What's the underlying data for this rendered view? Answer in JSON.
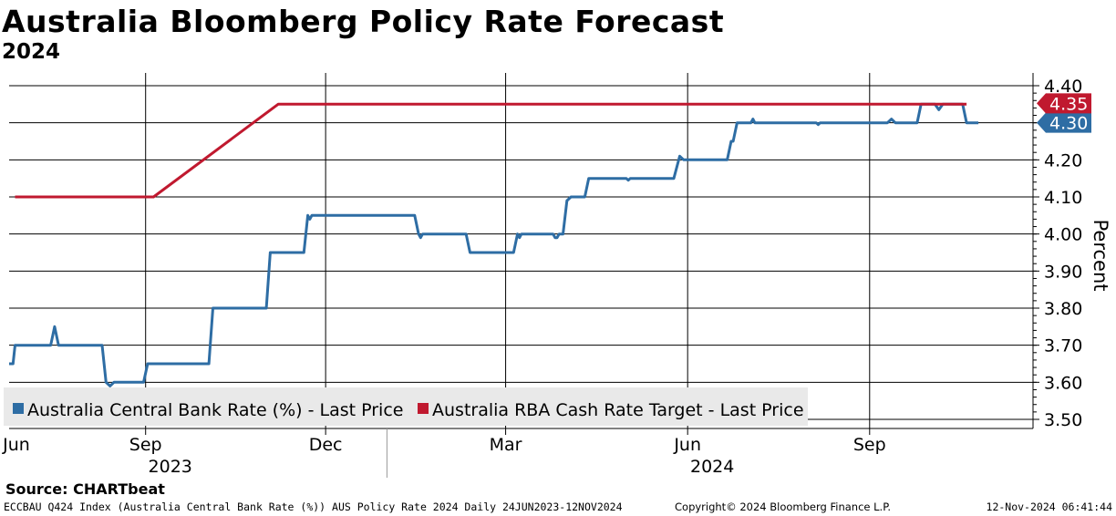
{
  "header": {
    "title": "Australia Bloomberg Policy Rate Forecast",
    "subtitle": "2024"
  },
  "source": "Source: CHARTbeat",
  "footer": {
    "left": "ECCBAU Q424 Index (Australia Central Bank Rate (%)) AUS Policy Rate 2024  Daily 24JUN2023-12NOV2024",
    "middle": "Copyright© 2024 Bloomberg Finance L.P.",
    "right": "12-Nov-2024 06:41:44"
  },
  "chart_data": {
    "type": "line",
    "title": "Australia Bloomberg Policy Rate Forecast",
    "subtitle": "2024",
    "ylabel": "Percent",
    "ylim": [
      3.5,
      4.42
    ],
    "yticks": [
      3.5,
      3.6,
      3.7,
      3.8,
      3.9,
      4.0,
      4.1,
      4.2,
      4.3,
      4.4
    ],
    "ytick_labels": [
      "3.50",
      "3.60",
      "3.70",
      "3.80",
      "3.90",
      "4.00",
      "4.10",
      "4.20",
      "4.30",
      "4.40"
    ],
    "xlim": [
      "2023-06-24",
      "2024-11-12"
    ],
    "xticks": [
      {
        "date": "2023-06-01",
        "label": "Jun"
      },
      {
        "date": "2023-09-01",
        "label": "Sep"
      },
      {
        "date": "2023-12-01",
        "label": "Dec"
      },
      {
        "date": "2024-03-01",
        "label": "Mar"
      },
      {
        "date": "2024-06-01",
        "label": "Jun"
      },
      {
        "date": "2024-09-01",
        "label": "Sep"
      }
    ],
    "year_labels": [
      {
        "date": "2023-09-01",
        "label": "2023"
      },
      {
        "date": "2024-06-01",
        "label": "2024"
      }
    ],
    "year_divider": "2024-01-01",
    "grid": true,
    "legend_position": "bottom-left",
    "series": [
      {
        "name": "Australia Central Bank Rate (%) - Last Price",
        "color": "#2e6da4",
        "last_label": "4.30",
        "points": [
          [
            "2023-06-24",
            3.65
          ],
          [
            "2023-06-26",
            3.65
          ],
          [
            "2023-06-27",
            3.7
          ],
          [
            "2023-07-15",
            3.7
          ],
          [
            "2023-07-17",
            3.75
          ],
          [
            "2023-07-19",
            3.7
          ],
          [
            "2023-08-10",
            3.7
          ],
          [
            "2023-08-12",
            3.6
          ],
          [
            "2023-08-14",
            3.59
          ],
          [
            "2023-08-16",
            3.6
          ],
          [
            "2023-08-31",
            3.6
          ],
          [
            "2023-09-02",
            3.65
          ],
          [
            "2023-09-05",
            3.65
          ],
          [
            "2023-10-03",
            3.65
          ],
          [
            "2023-10-05",
            3.8
          ],
          [
            "2023-11-01",
            3.8
          ],
          [
            "2023-11-03",
            3.95
          ],
          [
            "2023-11-20",
            3.95
          ],
          [
            "2023-11-22",
            4.05
          ],
          [
            "2023-11-23",
            4.04
          ],
          [
            "2023-11-24",
            4.05
          ],
          [
            "2024-01-15",
            4.05
          ],
          [
            "2024-01-17",
            4.0
          ],
          [
            "2024-01-18",
            3.99
          ],
          [
            "2024-01-19",
            4.0
          ],
          [
            "2024-02-10",
            4.0
          ],
          [
            "2024-02-12",
            3.95
          ],
          [
            "2024-03-05",
            3.95
          ],
          [
            "2024-03-07",
            4.0
          ],
          [
            "2024-03-08",
            3.99
          ],
          [
            "2024-03-09",
            4.0
          ],
          [
            "2024-03-25",
            4.0
          ],
          [
            "2024-03-26",
            3.99
          ],
          [
            "2024-03-27",
            3.99
          ],
          [
            "2024-03-28",
            4.0
          ],
          [
            "2024-03-30",
            4.0
          ],
          [
            "2024-04-01",
            4.09
          ],
          [
            "2024-04-03",
            4.1
          ],
          [
            "2024-04-10",
            4.1
          ],
          [
            "2024-04-12",
            4.15
          ],
          [
            "2024-05-01",
            4.15
          ],
          [
            "2024-05-02",
            4.145
          ],
          [
            "2024-05-03",
            4.15
          ],
          [
            "2024-05-25",
            4.15
          ],
          [
            "2024-05-28",
            4.21
          ],
          [
            "2024-05-30",
            4.2
          ],
          [
            "2024-06-21",
            4.2
          ],
          [
            "2024-06-23",
            4.25
          ],
          [
            "2024-06-24",
            4.25
          ],
          [
            "2024-06-26",
            4.3
          ],
          [
            "2024-07-03",
            4.3
          ],
          [
            "2024-07-04",
            4.31
          ],
          [
            "2024-07-05",
            4.3
          ],
          [
            "2024-08-05",
            4.3
          ],
          [
            "2024-08-06",
            4.295
          ],
          [
            "2024-08-07",
            4.3
          ],
          [
            "2024-09-10",
            4.3
          ],
          [
            "2024-09-12",
            4.31
          ],
          [
            "2024-09-14",
            4.3
          ],
          [
            "2024-09-25",
            4.3
          ],
          [
            "2024-09-27",
            4.35
          ],
          [
            "2024-10-04",
            4.35
          ],
          [
            "2024-10-06",
            4.335
          ],
          [
            "2024-10-08",
            4.35
          ],
          [
            "2024-10-18",
            4.35
          ],
          [
            "2024-10-20",
            4.3
          ],
          [
            "2024-10-26",
            4.3
          ]
        ]
      },
      {
        "name": "Australia RBA Cash Rate Target - Last Price",
        "color": "#c0192f",
        "last_label": "4.35",
        "points": [
          [
            "2023-06-27",
            4.1
          ],
          [
            "2023-09-05",
            4.1
          ],
          [
            "2023-11-07",
            4.35
          ],
          [
            "2024-10-20",
            4.35
          ]
        ]
      }
    ]
  }
}
